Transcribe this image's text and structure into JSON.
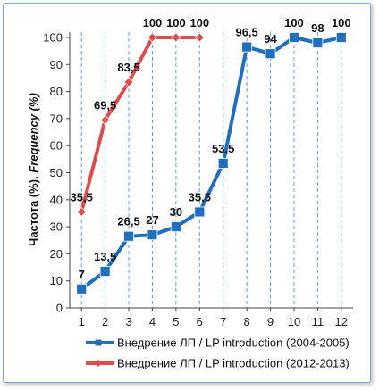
{
  "chart_data": {
    "type": "line",
    "title": "",
    "ylabel_plain": "Частота (%), ",
    "ylabel_italic": "Frequency (%)",
    "xlabel": "",
    "ylim": [
      0,
      100
    ],
    "yticks": [
      0,
      10,
      20,
      30,
      40,
      50,
      60,
      70,
      80,
      90,
      100
    ],
    "x": [
      1,
      2,
      3,
      4,
      5,
      6,
      7,
      8,
      9,
      10,
      11,
      12
    ],
    "grid": "vertical dashed lines at each x",
    "legend_position": "bottom",
    "series": [
      {
        "name": "Внедрение ЛП / LP introduction (2004-2005)",
        "color": "#1f6fbf",
        "marker": "square",
        "x": [
          1,
          2,
          3,
          4,
          5,
          6,
          7,
          8,
          9,
          10,
          11,
          12
        ],
        "values": [
          7,
          13.5,
          26.5,
          27,
          30,
          35.5,
          53.5,
          96.5,
          94,
          100,
          98,
          100
        ],
        "labels": [
          "7",
          "13,5",
          "26,5",
          "27",
          "30",
          "35,5",
          "53,5",
          "96,5",
          "94",
          "100",
          "98",
          "100"
        ]
      },
      {
        "name": "Внедрение ЛП / LP introduction (2012-2013)",
        "color": "#e04b4b",
        "marker": "diamond",
        "x": [
          1,
          2,
          3,
          4,
          5,
          6
        ],
        "values": [
          35.5,
          69.5,
          83.5,
          100,
          100,
          100
        ],
        "labels": [
          "35,5",
          "69,5",
          "83,5",
          "100",
          "100",
          "100"
        ]
      }
    ]
  }
}
